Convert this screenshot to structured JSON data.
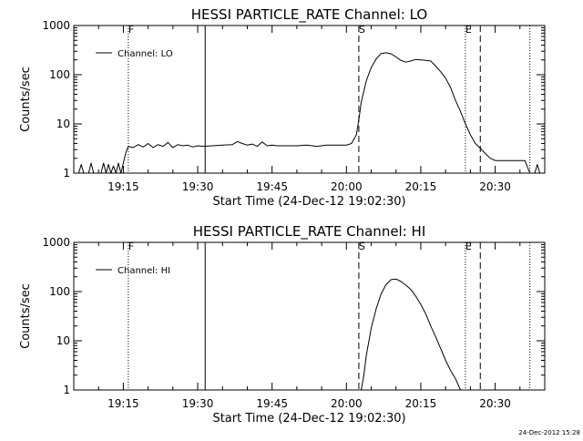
{
  "chart_data": [
    {
      "type": "line",
      "title": "HESSI PARTICLE_RATE Channel: LO",
      "xlabel": "Start Time (24-Dec-12 19:02:30)",
      "ylabel": "Counts/sec",
      "yscale": "log",
      "xlim": [
        "19:05",
        "20:40"
      ],
      "ylim": [
        1,
        1000
      ],
      "x_ticks": [
        "19:15",
        "19:30",
        "19:45",
        "20:00",
        "20:15",
        "20:30"
      ],
      "y_ticks": [
        "1",
        "10",
        "100",
        "1000"
      ],
      "grid": false,
      "legend_position": "top-left",
      "series": [
        {
          "name": "Channel: LO",
          "color": "#000000",
          "x": [
            "19:05:00",
            "19:06:00",
            "19:06:30",
            "19:07:00",
            "19:08:00",
            "19:08:30",
            "19:09:00",
            "19:10:30",
            "19:11:00",
            "19:11:30",
            "19:12:00",
            "19:12:30",
            "19:13:00",
            "19:13:30",
            "19:14:00",
            "19:14:30",
            "19:15:00",
            "19:15:30",
            "19:16:00",
            "19:17:00",
            "19:18:00",
            "19:19:00",
            "19:20:00",
            "19:21:00",
            "19:22:00",
            "19:23:00",
            "19:24:00",
            "19:25:00",
            "19:26:00",
            "19:27:00",
            "19:28:00",
            "19:29:00",
            "19:30:00",
            "19:31:00",
            "19:33:00",
            "19:35:00",
            "19:37:00",
            "19:38:00",
            "19:39:00",
            "19:40:00",
            "19:41:00",
            "19:42:00",
            "19:43:00",
            "19:44:00",
            "19:45:00",
            "19:46:00",
            "19:47:00",
            "19:48:00",
            "19:50:00",
            "19:52:00",
            "19:54:00",
            "19:56:00",
            "19:58:00",
            "20:00:00",
            "20:01:00",
            "20:02:00",
            "20:02:30",
            "20:03:00",
            "20:04:00",
            "20:05:00",
            "20:06:00",
            "20:07:00",
            "20:08:00",
            "20:09:00",
            "20:10:00",
            "20:11:00",
            "20:12:00",
            "20:13:00",
            "20:14:00",
            "20:15:00",
            "20:16:00",
            "20:17:00",
            "20:18:00",
            "20:19:00",
            "20:20:00",
            "20:21:00",
            "20:22:00",
            "20:23:00",
            "20:24:00",
            "20:25:00",
            "20:26:00",
            "20:27:00",
            "20:28:00",
            "20:29:00",
            "20:30:00",
            "20:31:00",
            "20:32:00",
            "20:33:00",
            "20:34:00",
            "20:35:00",
            "20:36:00",
            "20:37:00",
            "20:38:00",
            "20:38:30",
            "20:39:00"
          ],
          "y": [
            1,
            1,
            1.5,
            1,
            1,
            1.6,
            1,
            1,
            1.6,
            1,
            1.5,
            1,
            1.4,
            1,
            1.6,
            1,
            1.6,
            2.6,
            3.5,
            3.3,
            3.8,
            3.4,
            4,
            3.3,
            3.8,
            3.5,
            4.2,
            3.3,
            3.8,
            3.6,
            3.7,
            3.4,
            3.6,
            3.5,
            3.6,
            3.7,
            3.8,
            4.4,
            4,
            3.7,
            3.9,
            3.5,
            4.3,
            3.6,
            3.7,
            3.6,
            3.6,
            3.6,
            3.6,
            3.7,
            3.5,
            3.7,
            3.7,
            3.7,
            4,
            6,
            12,
            28,
            75,
            140,
            210,
            270,
            280,
            265,
            230,
            195,
            180,
            190,
            205,
            200,
            195,
            190,
            150,
            115,
            85,
            55,
            30,
            18,
            10,
            6,
            4,
            3.2,
            2.5,
            2,
            1.8,
            1.8,
            1.8,
            1.8,
            1.8,
            1.8,
            1.8,
            1,
            1,
            1.5,
            1
          ]
        }
      ],
      "markers": [
        {
          "time": "19:16:00",
          "style": "dotted",
          "label": "F"
        },
        {
          "time": "19:31:30",
          "style": "solid",
          "label": ""
        },
        {
          "time": "20:02:30",
          "style": "dashed",
          "label": "S"
        },
        {
          "time": "20:24:00",
          "style": "dotted",
          "label": "E"
        },
        {
          "time": "20:27:00",
          "style": "dashed",
          "label": ""
        },
        {
          "time": "20:37:00",
          "style": "dotted",
          "label": ""
        }
      ]
    },
    {
      "type": "line",
      "title": "HESSI PARTICLE_RATE Channel: HI",
      "xlabel": "Start Time (24-Dec-12 19:02:30)",
      "ylabel": "Counts/sec",
      "yscale": "log",
      "xlim": [
        "19:05",
        "20:40"
      ],
      "ylim": [
        1,
        1000
      ],
      "x_ticks": [
        "19:15",
        "19:30",
        "19:45",
        "20:00",
        "20:15",
        "20:30"
      ],
      "y_ticks": [
        "1",
        "10",
        "100",
        "1000"
      ],
      "grid": false,
      "legend_position": "top-left",
      "series": [
        {
          "name": "Channel: HI",
          "color": "#000000",
          "x": [
            "20:03:00",
            "20:03:30",
            "20:04:00",
            "20:05:00",
            "20:06:00",
            "20:07:00",
            "20:08:00",
            "20:09:00",
            "20:10:00",
            "20:11:00",
            "20:12:00",
            "20:13:00",
            "20:14:00",
            "20:15:00",
            "20:16:00",
            "20:17:00",
            "20:18:00",
            "20:19:00",
            "20:20:00",
            "20:21:00",
            "20:22:00",
            "20:22:30",
            "20:23:00"
          ],
          "y": [
            1,
            2,
            5,
            18,
            45,
            90,
            140,
            175,
            180,
            160,
            135,
            110,
            80,
            55,
            35,
            20,
            12,
            7,
            4,
            2.5,
            1.7,
            1.3,
            1
          ]
        }
      ],
      "markers": [
        {
          "time": "19:16:00",
          "style": "dotted",
          "label": "F"
        },
        {
          "time": "19:31:30",
          "style": "solid",
          "label": ""
        },
        {
          "time": "20:02:30",
          "style": "dashed",
          "label": "S"
        },
        {
          "time": "20:24:00",
          "style": "dotted",
          "label": "E"
        },
        {
          "time": "20:27:00",
          "style": "dashed",
          "label": ""
        },
        {
          "time": "20:37:00",
          "style": "dotted",
          "label": ""
        }
      ]
    }
  ],
  "footer": {
    "timestamp": "24-Dec-2012 15:28"
  }
}
